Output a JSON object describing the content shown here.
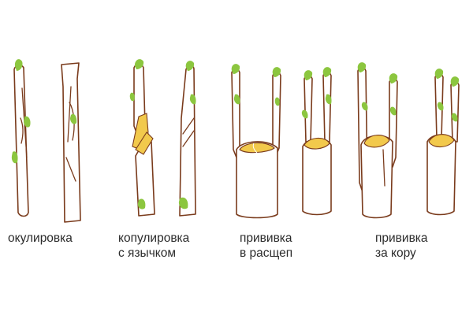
{
  "colors": {
    "bark_outline": "#7a3b1c",
    "bud": "#8cc63f",
    "cut_surface": "#f2c94c",
    "background": "#ffffff"
  },
  "methods": [
    {
      "id": "budding",
      "label_lines": [
        "окулировка"
      ]
    },
    {
      "id": "tongue-splice",
      "label_lines": [
        "копулировка",
        "с язычком"
      ]
    },
    {
      "id": "cleft-graft",
      "label_lines": [
        "прививка",
        "в расщеп"
      ]
    },
    {
      "id": "bark-graft",
      "label_lines": [
        "прививка",
        "за кору"
      ]
    }
  ]
}
